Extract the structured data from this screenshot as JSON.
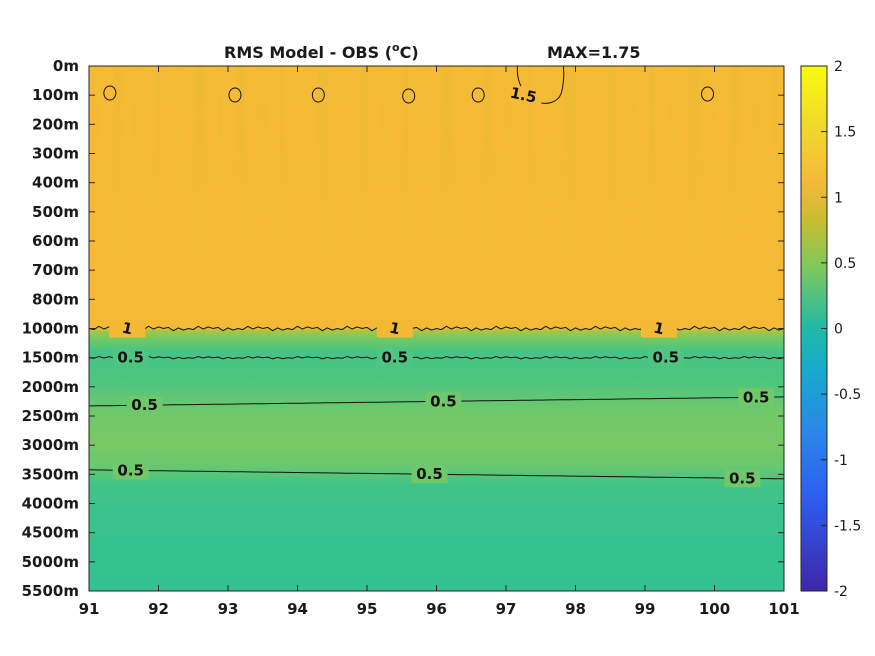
{
  "chart_data": {
    "type": "heatmap",
    "title": "RMS Model - OBS (°C)",
    "title_main": "RMS Model - OBS (",
    "title_sup": "o",
    "title_unit": "C)",
    "max_label": "MAX=1.75",
    "x_ticks": [
      "91",
      "92",
      "93",
      "94",
      "95",
      "96",
      "97",
      "98",
      "99",
      "100",
      "101"
    ],
    "x_range": [
      91,
      101
    ],
    "y_ticks": [
      "0m",
      "100m",
      "200m",
      "300m",
      "400m",
      "500m",
      "600m",
      "700m",
      "800m",
      "1000m",
      "1500m",
      "2000m",
      "2500m",
      "3000m",
      "3500m",
      "4000m",
      "4500m",
      "5000m",
      "5500m"
    ],
    "colorbar": {
      "ticks": [
        "2",
        "1.5",
        "1",
        "0.5",
        "0",
        "-0.5",
        "-1",
        "-1.5",
        "-2"
      ],
      "range": [
        -2,
        2
      ],
      "colors": [
        "#3e26a8",
        "#2e6ef5",
        "#14a3cf",
        "#1dbe9f",
        "#80cb58",
        "#e9ba30",
        "#f9fb0e"
      ]
    },
    "depth_profile": [
      {
        "depth": "0m",
        "value": 1.32
      },
      {
        "depth": "100m",
        "value": 1.3
      },
      {
        "depth": "300m",
        "value": 1.28
      },
      {
        "depth": "500m",
        "value": 1.28
      },
      {
        "depth": "700m",
        "value": 1.3
      },
      {
        "depth": "800m",
        "value": 1.25
      },
      {
        "depth": "1000m",
        "value": 0.95
      },
      {
        "depth": "1500m",
        "value": 0.5
      },
      {
        "depth": "2500m",
        "value": 0.6
      },
      {
        "depth": "3000m",
        "value": 0.63
      },
      {
        "depth": "3500m",
        "value": 0.5
      },
      {
        "depth": "4500m",
        "value": 0.42
      },
      {
        "depth": "5500m",
        "value": 0.38
      }
    ],
    "contours": [
      {
        "level": "1",
        "depth": "1000m",
        "label_x": [
          91.55,
          95.4,
          99.2
        ]
      },
      {
        "level": "0.5",
        "depth": "1500m",
        "label_x": [
          91.6,
          95.4,
          99.3
        ]
      },
      {
        "level": "0.5",
        "depth": "2000m–2500m",
        "label_x": [
          91.8,
          96.1,
          100.6
        ]
      },
      {
        "level": "0.5",
        "depth": "3500m",
        "label_x": [
          91.6,
          95.9,
          100.4
        ]
      },
      {
        "level": "1.5",
        "depth": "100m",
        "label_x": [
          97.25
        ]
      }
    ]
  }
}
